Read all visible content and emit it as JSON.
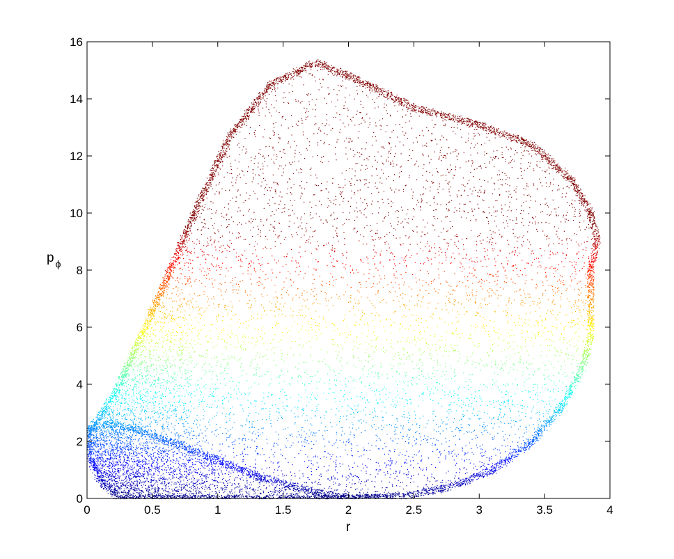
{
  "chart_data": {
    "type": "scatter",
    "title": "",
    "xlabel": "r",
    "ylabel_main": "p",
    "ylabel_sub": "ϕ",
    "xlim": [
      0,
      4
    ],
    "ylim": [
      0,
      16
    ],
    "xticks": [
      0,
      0.5,
      1,
      1.5,
      2,
      2.5,
      3,
      3.5,
      4
    ],
    "xtick_labels": [
      "0",
      "0.5",
      "1",
      "1.5",
      "2",
      "2.5",
      "3",
      "3.5",
      "4"
    ],
    "yticks": [
      0,
      2,
      4,
      6,
      8,
      10,
      12,
      14,
      16
    ],
    "ytick_labels": [
      "0",
      "2",
      "4",
      "6",
      "8",
      "10",
      "12",
      "14",
      "16"
    ],
    "grid": false,
    "legend": "none",
    "colormap": "jet",
    "color_by": "y",
    "upper_boundary": [
      [
        0.0,
        2.3
      ],
      [
        0.2,
        3.6
      ],
      [
        0.5,
        6.6
      ],
      [
        0.8,
        9.8
      ],
      [
        1.1,
        12.8
      ],
      [
        1.4,
        14.5
      ],
      [
        1.75,
        15.3
      ],
      [
        2.1,
        14.6
      ],
      [
        2.5,
        13.7
      ],
      [
        3.0,
        13.1
      ],
      [
        3.4,
        12.4
      ],
      [
        3.7,
        11.2
      ],
      [
        3.85,
        10.0
      ],
      [
        3.9,
        9.1
      ]
    ],
    "right_boundary": [
      [
        3.9,
        9.1
      ],
      [
        3.85,
        8.0
      ],
      [
        3.85,
        6.5
      ],
      [
        3.85,
        5.6
      ],
      [
        3.78,
        4.5
      ],
      [
        3.62,
        3.2
      ],
      [
        3.4,
        2.0
      ],
      [
        3.1,
        1.0
      ],
      [
        2.8,
        0.45
      ],
      [
        2.5,
        0.15
      ],
      [
        2.3,
        0.05
      ]
    ],
    "lower_boundary": [
      [
        0.0,
        2.4
      ],
      [
        0.1,
        2.58
      ],
      [
        0.2,
        2.62
      ],
      [
        0.4,
        2.4
      ],
      [
        0.7,
        1.9
      ],
      [
        1.0,
        1.35
      ],
      [
        1.3,
        0.8
      ],
      [
        1.6,
        0.4
      ],
      [
        1.9,
        0.08
      ],
      [
        2.0,
        0.03
      ],
      [
        2.3,
        0.05
      ]
    ],
    "left_lower_lobe": [
      [
        0.0,
        2.4
      ],
      [
        0.02,
        1.4
      ],
      [
        0.1,
        0.6
      ],
      [
        0.25,
        0.0
      ],
      [
        0.6,
        0.0
      ],
      [
        1.2,
        0.0
      ],
      [
        1.9,
        0.0
      ],
      [
        2.3,
        0.05
      ]
    ]
  }
}
